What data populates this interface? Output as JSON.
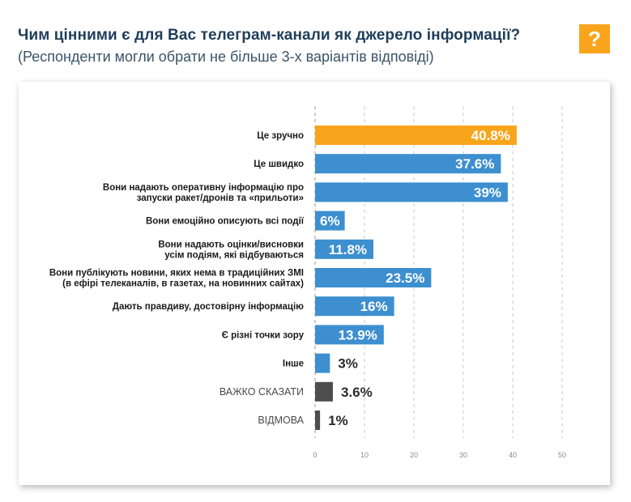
{
  "header": {
    "title": "Чим цінними є для Вас телеграм-канали як джерело інформації?",
    "subtitle": "(Респонденти могли обрати не більше 3-х варіантів відповіді)",
    "help_symbol": "?"
  },
  "colors": {
    "highlight": "#f8a51c",
    "bar": "#3d8fcf",
    "bar_dark": "#4d4d4d",
    "help_badge": "#f8a51c",
    "title": "#1f3e5a"
  },
  "chart_data": {
    "type": "bar",
    "orientation": "horizontal",
    "title": "Чим цінними є для Вас телеграм-канали як джерело інформації?",
    "subtitle": "(Респонденти могли обрати не більше 3-х варіантів відповіді)",
    "xlim": [
      0,
      50
    ],
    "x_ticks": [
      "0",
      "10",
      "20",
      "30",
      "40",
      "50"
    ],
    "grid": true,
    "categories": [
      [
        "Це зручно"
      ],
      [
        "Це швидко"
      ],
      [
        "Вони надають оперативну інформацію про",
        "запуски ракет/дронів та «прильоти»"
      ],
      [
        "Вони емоційно описують всі події"
      ],
      [
        "Вони надають оцінки/висновки",
        "усім подіям, які відбуваються"
      ],
      [
        "Вони публікують новини, яких нема в традиційних ЗМІ",
        "(в ефірі телеканалів, в газетах, на новинних сайтах)"
      ],
      [
        "Дають правдиву, достовірну інформацію"
      ],
      [
        "Є різні точки зору"
      ],
      [
        "Інше"
      ],
      [
        "ВАЖКО СКАЗАТИ"
      ],
      [
        "ВІДМОВА"
      ]
    ],
    "values": [
      40.8,
      37.6,
      39,
      6,
      11.8,
      23.5,
      16,
      13.9,
      3,
      3.6,
      1
    ],
    "value_labels": [
      "40.8%",
      "37.6%",
      "39%",
      "6%",
      "11.8%",
      "23.5%",
      "16%",
      "13.9%",
      "3%",
      "3.6%",
      "1%"
    ],
    "label_style": [
      "bold",
      "bold",
      "bold",
      "bold",
      "bold",
      "bold",
      "bold",
      "bold",
      "bold",
      "regular",
      "regular"
    ],
    "bar_colors": [
      "#f8a51c",
      "#3d8fcf",
      "#3d8fcf",
      "#3d8fcf",
      "#3d8fcf",
      "#3d8fcf",
      "#3d8fcf",
      "#3d8fcf",
      "#3d8fcf",
      "#4d4d4d",
      "#4d4d4d"
    ]
  }
}
